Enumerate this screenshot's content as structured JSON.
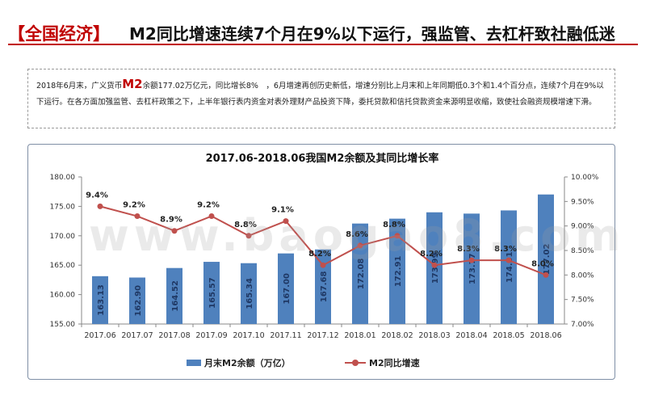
{
  "header": {
    "tag": "【全国经济】",
    "title": "M2同比增速连续7个月在9%以下运行，强监管、去杠杆致社融低迷"
  },
  "summary": {
    "part1": "2018年6月末，广义货币",
    "highlight": "M2",
    "part2": "余额177.02万亿元，同比增长8%　，6月增速再创历史新低，增速分别比上月末和上年同期低0.3个和1.4个百分点，连续7个月在9%以下运行。在各方面加强监管、去杠杆政策之下，上半年银行表内资金对表外理财产品投资下降，委托贷款和信托贷款资金来源明显收缩，致使社会融资规模增速下滑。"
  },
  "watermark": "www.baogao8.com",
  "colors": {
    "bar": "#4f81bd",
    "line": "#c0504d",
    "accent": "#c00000"
  },
  "chart_data": {
    "type": "bar",
    "title": "2017.06-2018.06我国M2余额及其同比增长率",
    "categories": [
      "2017.06",
      "2017.07",
      "2017.08",
      "2017.09",
      "2017.10",
      "2017.11",
      "2017.12",
      "2018.01",
      "2018.02",
      "2018.03",
      "2018.04",
      "2018.05",
      "2018.06"
    ],
    "series": [
      {
        "name": "月末M2余额（万亿）",
        "kind": "bar",
        "axis": "left",
        "values": [
          163.13,
          162.9,
          164.52,
          165.57,
          165.34,
          167.0,
          167.68,
          172.08,
          172.91,
          173.99,
          173.77,
          174.31,
          177.02
        ],
        "labels": [
          "163.13",
          "162.90",
          "164.52",
          "165.57",
          "165.34",
          "167.00",
          "167.68",
          "172.08",
          "172.91",
          "173.99",
          "173.77",
          "174.31",
          "177.02"
        ]
      },
      {
        "name": "M2同比增速",
        "kind": "line",
        "axis": "right",
        "values": [
          9.4,
          9.2,
          8.9,
          9.2,
          8.8,
          9.1,
          8.2,
          8.6,
          8.8,
          8.2,
          8.3,
          8.3,
          8.0
        ],
        "labels": [
          "9.4%",
          "9.2%",
          "8.9%",
          "9.2%",
          "8.8%",
          "9.1%",
          "8.2%",
          "8.6%",
          "8.8%",
          "8.2%",
          "8.3%",
          "8.3%",
          "8.0%"
        ]
      }
    ],
    "y_left": {
      "min": 155,
      "max": 180,
      "step": 5,
      "ticks": [
        "155.00",
        "160.00",
        "165.00",
        "170.00",
        "175.00",
        "180.00"
      ]
    },
    "y_right": {
      "min": 7.0,
      "max": 10.0,
      "step": 0.5,
      "ticks": [
        "7.00%",
        "7.50%",
        "8.00%",
        "8.50%",
        "9.00%",
        "9.50%",
        "10.00%"
      ]
    },
    "legend_position": "bottom"
  }
}
